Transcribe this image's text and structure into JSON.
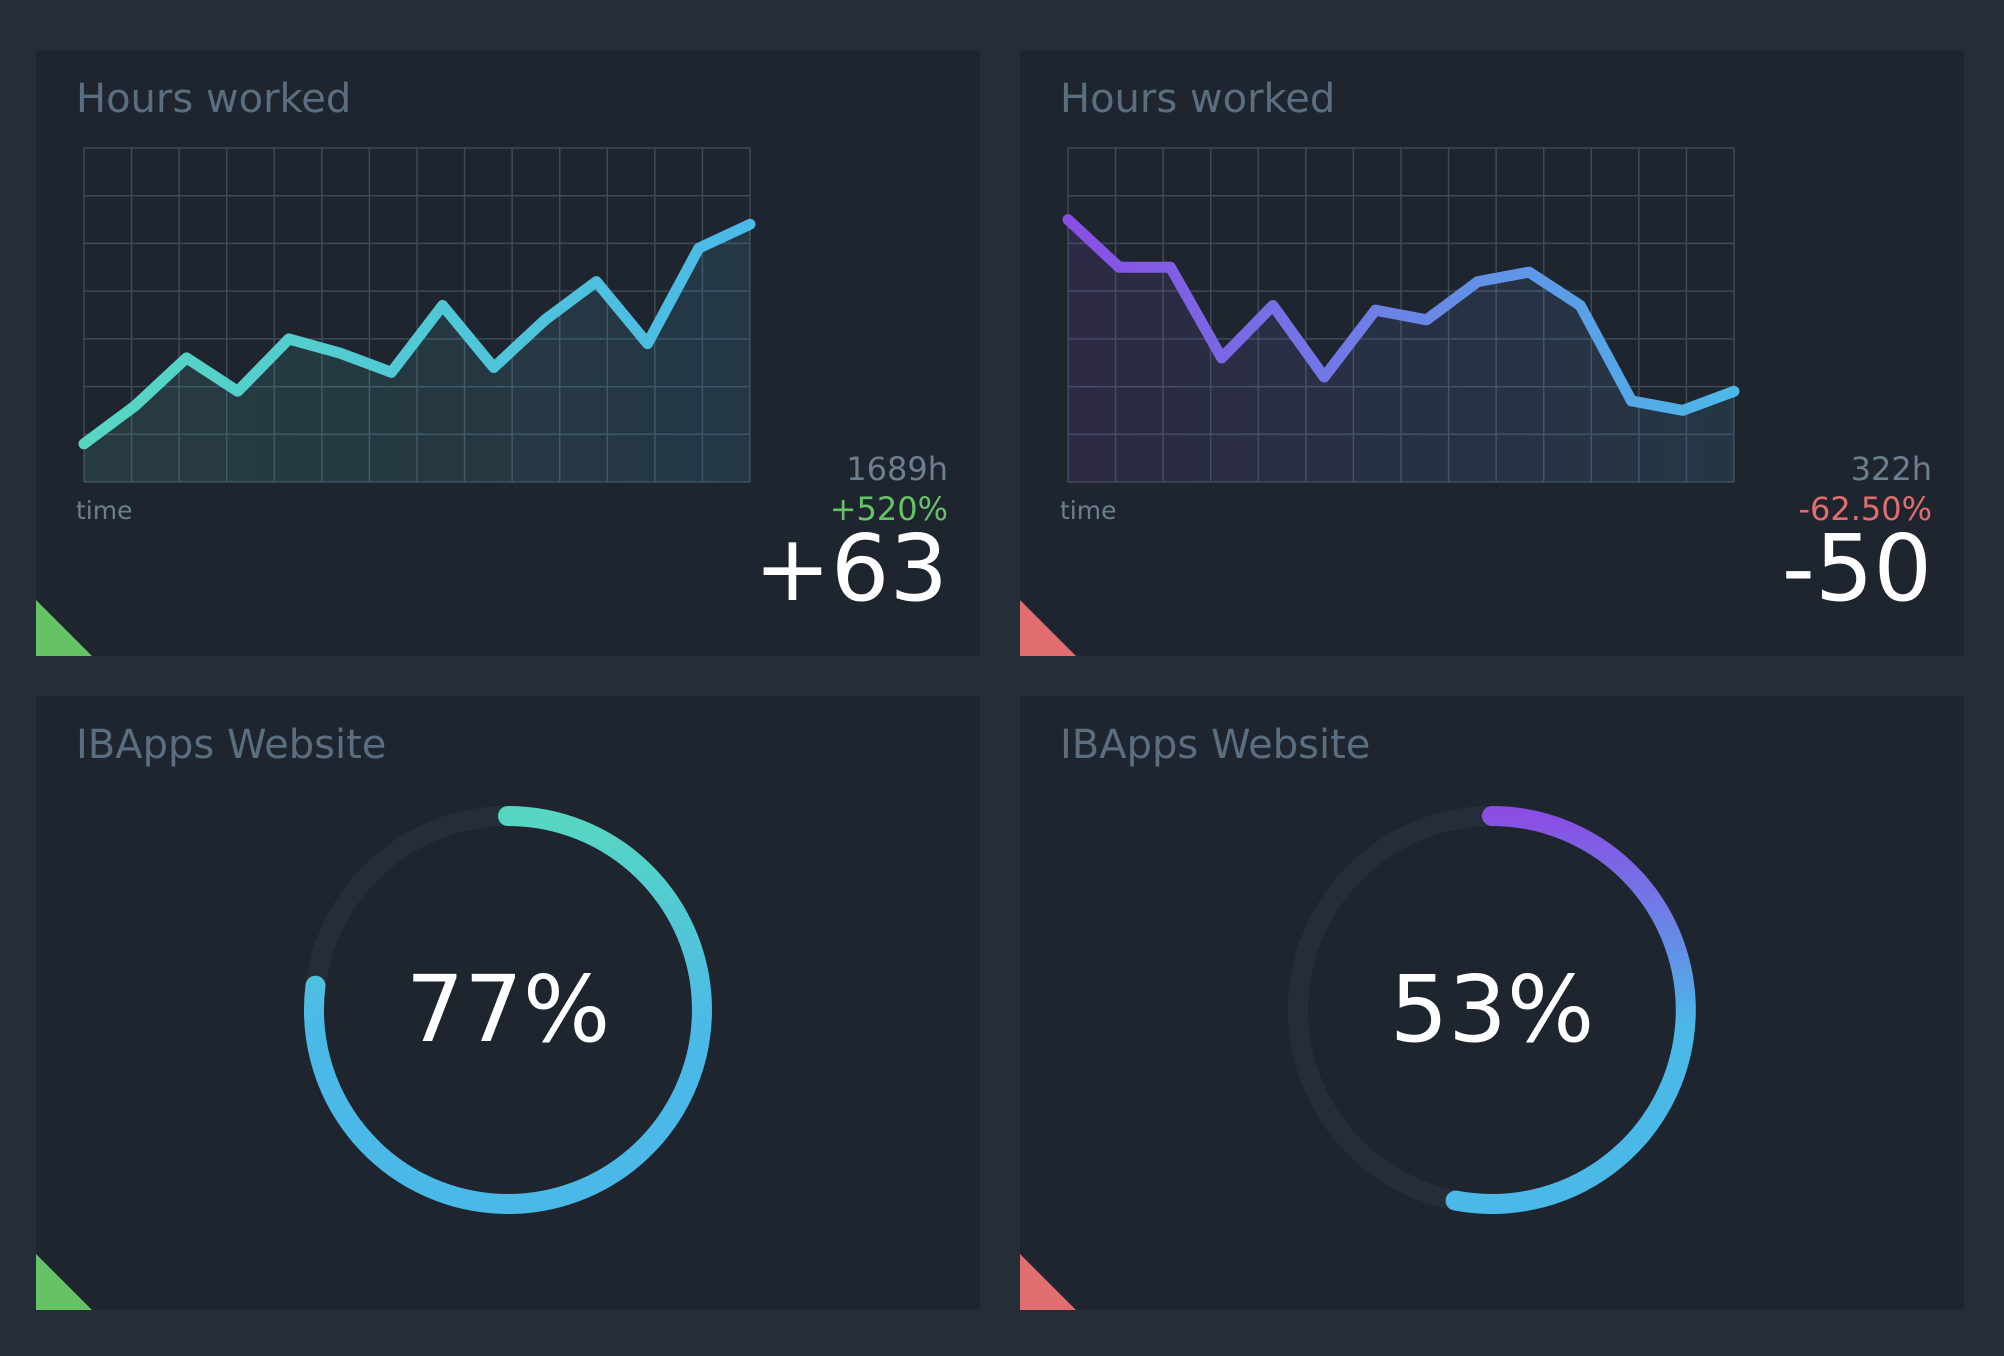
{
  "colors": {
    "positive": "#66c266",
    "negative": "#e06e6e",
    "teal": "#57d7c2",
    "blue": "#4bb9e8",
    "purple": "#8a4ee4",
    "track": "#252e38",
    "grid": "#3d4a57"
  },
  "cards": [
    {
      "title": "Hours worked",
      "time_label": "time",
      "total": "1689h",
      "percent": "+520%",
      "delta": "+63",
      "trend": "positive"
    },
    {
      "title": "Hours worked",
      "time_label": "time",
      "total": "322h",
      "percent": "-62.50%",
      "delta": "-50",
      "trend": "negative"
    },
    {
      "title": "IBApps Website",
      "value_label": "77%",
      "trend": "positive"
    },
    {
      "title": "IBApps Website",
      "value_label": "53%",
      "trend": "negative"
    }
  ],
  "chart_data": [
    {
      "type": "area",
      "xlabel": "time",
      "grid": true,
      "gradient": [
        "teal",
        "blue"
      ],
      "ylim": [
        0,
        7
      ],
      "x": [
        0,
        1,
        2,
        3,
        4,
        5,
        6,
        7,
        8,
        9,
        10,
        11,
        12,
        13
      ],
      "values": [
        0.8,
        1.6,
        2.6,
        1.9,
        3.0,
        2.7,
        2.3,
        3.7,
        2.4,
        3.4,
        4.2,
        2.9,
        4.9,
        5.4
      ]
    },
    {
      "type": "area",
      "xlabel": "time",
      "grid": true,
      "gradient": [
        "purple",
        "blue"
      ],
      "ylim": [
        0,
        7
      ],
      "x": [
        0,
        1,
        2,
        3,
        4,
        5,
        6,
        7,
        8,
        9,
        10,
        11,
        12,
        13
      ],
      "values": [
        5.5,
        4.5,
        4.5,
        2.6,
        3.7,
        2.2,
        3.6,
        3.4,
        4.2,
        4.4,
        3.7,
        1.7,
        1.5,
        1.9
      ]
    },
    {
      "type": "gauge",
      "value": 77,
      "max": 100,
      "gradient": [
        "teal",
        "blue"
      ]
    },
    {
      "type": "gauge",
      "value": 53,
      "max": 100,
      "gradient": [
        "purple",
        "blue"
      ]
    }
  ]
}
